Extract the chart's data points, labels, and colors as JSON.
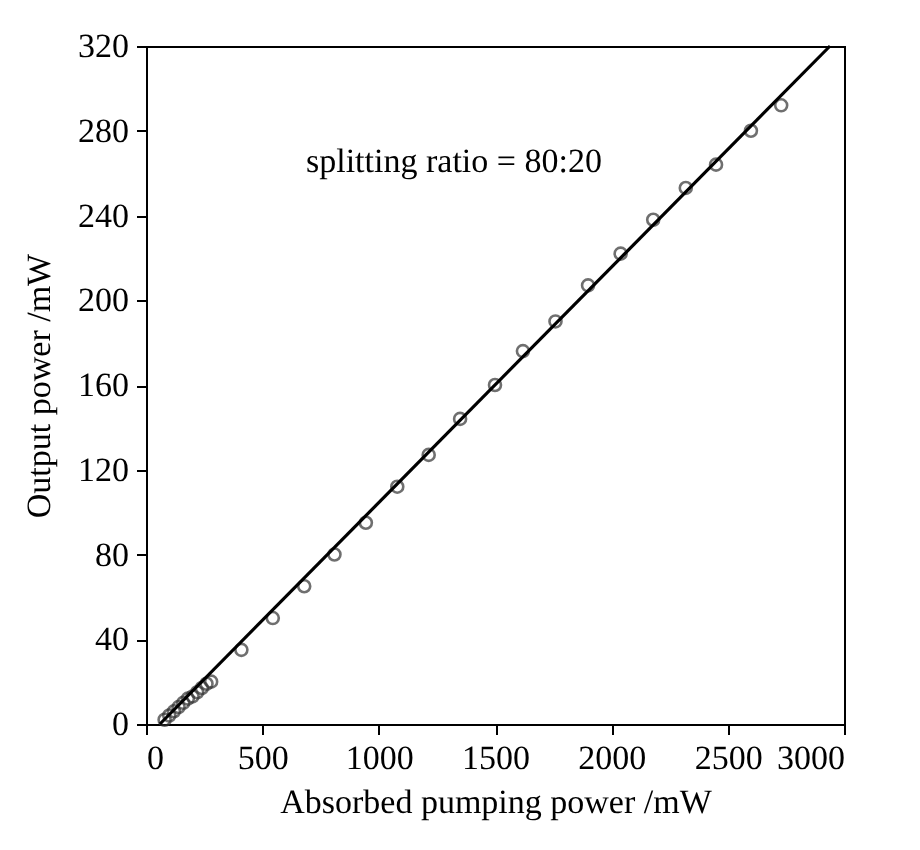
{
  "chart_data": {
    "type": "scatter",
    "xlabel": "Absorbed pumping power /mW",
    "ylabel": "Output power /mW",
    "annotations": [
      "splitting ratio = 80:20"
    ],
    "xlim": [
      0,
      3000
    ],
    "xticks": [
      0,
      500,
      1000,
      1500,
      2000,
      2500,
      3000
    ],
    "ylim": [
      0,
      320
    ],
    "yticks": [
      0,
      40,
      80,
      120,
      160,
      200,
      240,
      280,
      320
    ],
    "grid": false,
    "series": [
      {
        "color": "#333333",
        "marker": "circle",
        "x": [
          80,
          100,
          120,
          140,
          160,
          180,
          200,
          220,
          240,
          260,
          280,
          410,
          545,
          680,
          810,
          945,
          1080,
          1215,
          1350,
          1500,
          1620,
          1760,
          1900,
          2040,
          2180,
          2320,
          2450,
          2600,
          2730
        ],
        "values": [
          2,
          4,
          6,
          8,
          10,
          12,
          13,
          15,
          17,
          19,
          20,
          35,
          50,
          65,
          80,
          95,
          112,
          127,
          144,
          160,
          176,
          190,
          207,
          222,
          238,
          253,
          264,
          280,
          292
        ]
      },
      {
        "type": "line",
        "color": "#000000",
        "x": [
          60,
          2940
        ],
        "values": [
          0,
          320
        ]
      }
    ]
  }
}
